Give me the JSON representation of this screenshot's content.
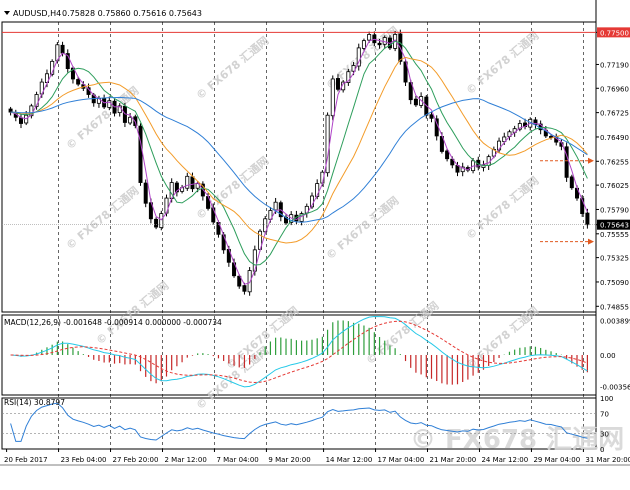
{
  "chart_data": {
    "type": "candlestick",
    "symbol_header": "AUDUSD,H4",
    "ohlc_header": "0.75828 0.75860 0.75616 0.75643",
    "price_axis": {
      "ticks": [
        "0.77500",
        "0.77190",
        "0.76960",
        "0.76725",
        "0.76490",
        "0.76255",
        "0.76025",
        "0.75790",
        "0.75643",
        "0.75555",
        "0.75325",
        "0.75090",
        "0.74855"
      ],
      "ylim": [
        0.748,
        0.776
      ]
    },
    "level_line": {
      "value": 0.775,
      "label": "0.77500",
      "color": "#e53935"
    },
    "current_price": {
      "value": 0.75643,
      "label": "0.75643"
    },
    "date_labels": [
      "20 Feb 2017",
      "23 Feb 04:00",
      "27 Feb 20:00",
      "2 Mar 12:00",
      "7 Mar 04:00",
      "9 Mar 20:00",
      "14 Mar 12:00",
      "17 Mar 04:00",
      "21 Mar 20:00",
      "24 Mar 12:00",
      "29 Mar 04:00",
      "31 Mar 20:00"
    ],
    "closes": [
      0.7673,
      0.7668,
      0.7662,
      0.767,
      0.7679,
      0.769,
      0.7702,
      0.771,
      0.7722,
      0.7738,
      0.773,
      0.7715,
      0.7705,
      0.77,
      0.7696,
      0.769,
      0.7682,
      0.7686,
      0.7678,
      0.7684,
      0.7672,
      0.7679,
      0.7663,
      0.7668,
      0.766,
      0.7605,
      0.7585,
      0.757,
      0.7562,
      0.7575,
      0.759,
      0.7605,
      0.7596,
      0.76,
      0.7611,
      0.7599,
      0.7604,
      0.7592,
      0.758,
      0.7567,
      0.7555,
      0.754,
      0.7528,
      0.7515,
      0.7505,
      0.75,
      0.752,
      0.754,
      0.7558,
      0.757,
      0.7578,
      0.7586,
      0.7572,
      0.7566,
      0.7574,
      0.7568,
      0.7575,
      0.7582,
      0.7592,
      0.7604,
      0.7615,
      0.767,
      0.7705,
      0.7695,
      0.7702,
      0.7712,
      0.7718,
      0.7735,
      0.7742,
      0.7748,
      0.774,
      0.7738,
      0.7745,
      0.7735,
      0.7748,
      0.7722,
      0.7702,
      0.7685,
      0.768,
      0.7688,
      0.767,
      0.7667,
      0.765,
      0.7635,
      0.7628,
      0.7622,
      0.7615,
      0.762,
      0.7617,
      0.7626,
      0.762,
      0.7622,
      0.763,
      0.7637,
      0.7645,
      0.7649,
      0.7654,
      0.7657,
      0.7662,
      0.7659,
      0.7666,
      0.7661,
      0.7656,
      0.765,
      0.7649,
      0.7644,
      0.764,
      0.761,
      0.76,
      0.759,
      0.7575,
      0.75643
    ],
    "moving_averages": [
      {
        "period": 12,
        "color": "#b044c8"
      },
      {
        "period": 30,
        "color": "#2e9e5c"
      },
      {
        "period": 60,
        "color": "#f39c2a"
      },
      {
        "period": 120,
        "color": "#2f7fd6"
      }
    ],
    "forecast_arrows": [
      {
        "price": 0.7626,
        "color": "#e05a20"
      },
      {
        "price": 0.7548,
        "color": "#e05a20"
      }
    ],
    "macd": {
      "label": "MACD(12,26,9) -0.001648 -0.000914 0.000000 -0.000734",
      "axis_ticks": [
        "0.003899",
        "0.00",
        "-0.003566"
      ],
      "ylim": [
        -0.0045,
        0.0045
      ],
      "colors": {
        "macd_line": "#25c9e8",
        "signal_line": "#e53935",
        "hist_up": "#2e9e3c",
        "hist_down": "#c62828"
      }
    },
    "rsi": {
      "label": "RSI(14) 30.8797",
      "levels": [
        70,
        30
      ],
      "axis_ticks": [
        "100",
        "70",
        "30",
        "0"
      ],
      "line_color": "#2f7fd6"
    },
    "watermark": "FX678",
    "watermark_cn": "汇通网"
  }
}
